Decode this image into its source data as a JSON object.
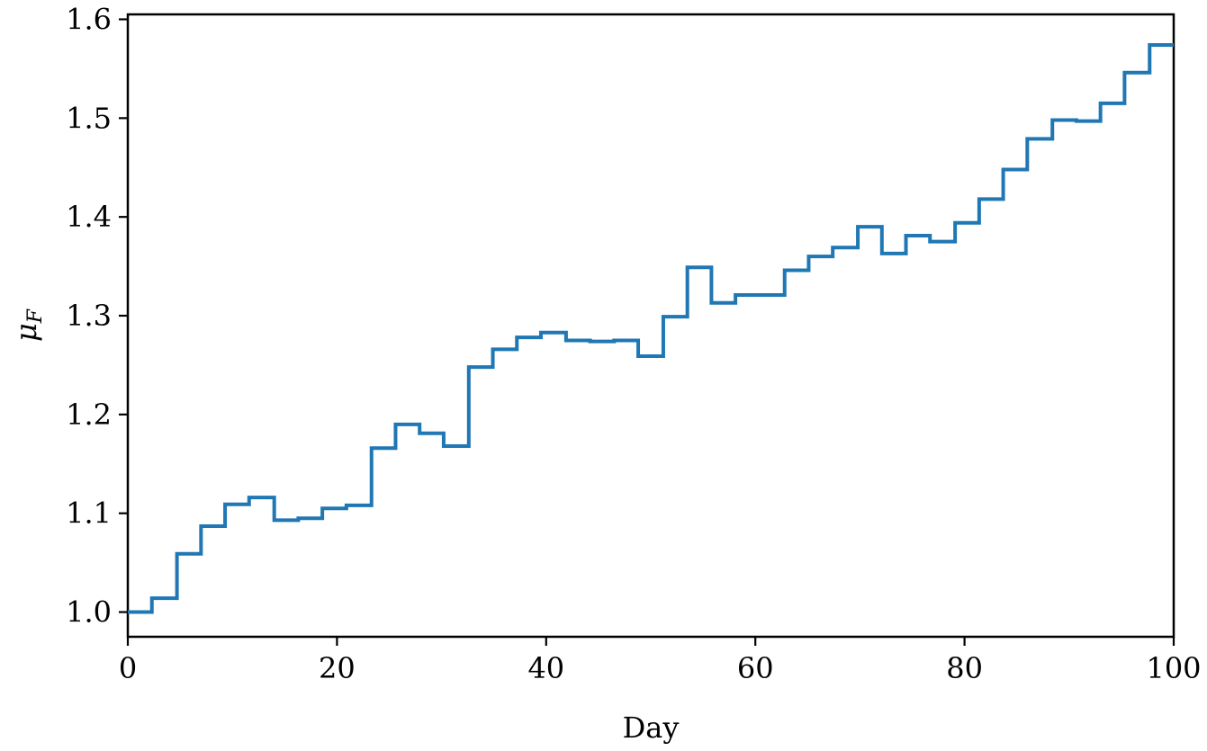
{
  "chart_data": {
    "type": "line",
    "drawstyle": "steps-post",
    "xlabel": "Day",
    "ylabel_main": "μ",
    "ylabel_sub": "F",
    "xlim": [
      0,
      100
    ],
    "ylim": [
      0.975,
      1.605
    ],
    "xticks": [
      0,
      20,
      40,
      60,
      80,
      100
    ],
    "xtick_labels": [
      "0",
      "20",
      "40",
      "60",
      "80",
      "100"
    ],
    "yticks": [
      1.0,
      1.1,
      1.2,
      1.3,
      1.4,
      1.5,
      1.6
    ],
    "ytick_labels": [
      "1.0",
      "1.1",
      "1.2",
      "1.3",
      "1.4",
      "1.5",
      "1.6"
    ],
    "grid": false,
    "color": "#1f77b4",
    "series": [
      {
        "x": [
          0,
          2.3,
          4.7,
          7.0,
          9.3,
          11.6,
          14.0,
          16.3,
          18.6,
          20.9,
          23.3,
          25.6,
          27.9,
          30.2,
          32.6,
          34.9,
          37.2,
          39.5,
          41.9,
          44.2,
          46.5,
          48.8,
          51.2,
          53.5,
          55.8,
          58.1,
          60.5,
          62.8,
          65.1,
          67.4,
          69.8,
          72.1,
          74.4,
          76.7,
          79.1,
          81.4,
          83.7,
          86.0,
          88.4,
          90.7,
          93.0,
          95.3,
          97.7,
          100
        ],
        "y": [
          1.0,
          1.014,
          1.059,
          1.087,
          1.109,
          1.116,
          1.093,
          1.095,
          1.105,
          1.108,
          1.166,
          1.19,
          1.181,
          1.168,
          1.248,
          1.266,
          1.278,
          1.283,
          1.275,
          1.274,
          1.275,
          1.259,
          1.299,
          1.349,
          1.313,
          1.321,
          1.321,
          1.346,
          1.36,
          1.369,
          1.39,
          1.363,
          1.381,
          1.375,
          1.394,
          1.418,
          1.448,
          1.479,
          1.498,
          1.497,
          1.515,
          1.546,
          1.574,
          1.574
        ]
      }
    ]
  }
}
